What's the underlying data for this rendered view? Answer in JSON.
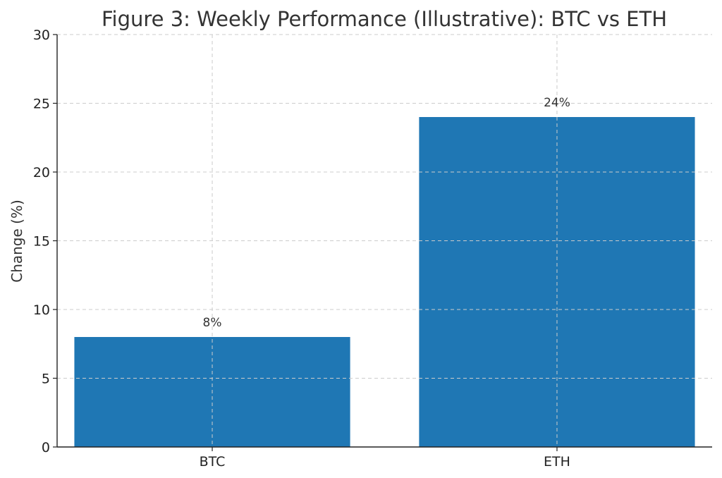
{
  "chart_data": {
    "type": "bar",
    "title": "Figure 3: Weekly Performance (Illustrative): BTC vs ETH",
    "xlabel": "",
    "ylabel": "Change (%)",
    "categories": [
      "BTC",
      "ETH"
    ],
    "values": [
      8,
      24
    ],
    "data_labels": [
      "8%",
      "24%"
    ],
    "ylim": [
      0,
      30
    ],
    "yticks": [
      0,
      5,
      10,
      15,
      20,
      25,
      30
    ],
    "grid": true,
    "bar_color": "#1f77b4"
  }
}
